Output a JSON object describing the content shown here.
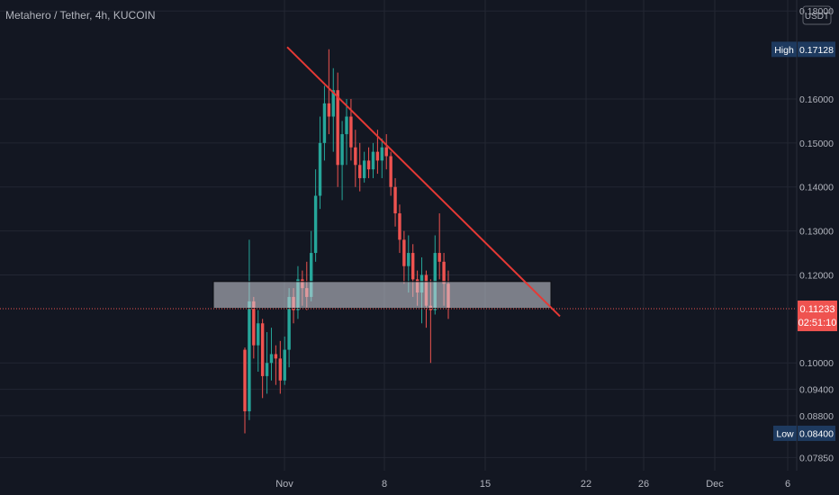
{
  "header": {
    "title": "Metahero / Tether, 4h, KUCOIN"
  },
  "currency_button": "USDT",
  "high_label": {
    "label": "High",
    "value": "0.17128"
  },
  "low_label": {
    "label": "Low",
    "value": "0.08400"
  },
  "price_label": {
    "value": "0.11233",
    "countdown": "02:51:10"
  },
  "colors": {
    "background": "#131722",
    "grid": "#232733",
    "text": "#b2b5be",
    "up": "#26a69a",
    "down": "#ef5350",
    "trendline": "#e53935",
    "zone_fill": "#d1d4dc",
    "label_bg": "#1e3a5f"
  },
  "chart_data": {
    "type": "candlestick",
    "title": "Metahero / Tether, 4h, KUCOIN",
    "ylim": [
      0.0755,
      0.1825
    ],
    "y_ticks": [
      "0.18000",
      "0.16000",
      "0.15000",
      "0.14000",
      "0.13000",
      "0.12000",
      "0.10000",
      "0.09400",
      "0.08800",
      "0.07850"
    ],
    "x_ticks": [
      "Nov",
      "8",
      "15",
      "22",
      "26",
      "Dec",
      "6"
    ],
    "last_price": 0.11233,
    "high": 0.17128,
    "low": 0.084,
    "candles": [
      [
        0.103,
        0.1035,
        0.084,
        0.089
      ],
      [
        0.089,
        0.128,
        0.087,
        0.114
      ],
      [
        0.114,
        0.115,
        0.101,
        0.104
      ],
      [
        0.104,
        0.112,
        0.098,
        0.109
      ],
      [
        0.109,
        0.11,
        0.092,
        0.097
      ],
      [
        0.097,
        0.107,
        0.093,
        0.1
      ],
      [
        0.1,
        0.108,
        0.096,
        0.102
      ],
      [
        0.102,
        0.104,
        0.095,
        0.101
      ],
      [
        0.101,
        0.105,
        0.093,
        0.096
      ],
      [
        0.096,
        0.106,
        0.095,
        0.103
      ],
      [
        0.103,
        0.117,
        0.099,
        0.115
      ],
      [
        0.115,
        0.117,
        0.109,
        0.112
      ],
      [
        0.112,
        0.122,
        0.11,
        0.119
      ],
      [
        0.119,
        0.121,
        0.113,
        0.117
      ],
      [
        0.117,
        0.123,
        0.112,
        0.115
      ],
      [
        0.115,
        0.13,
        0.114,
        0.125
      ],
      [
        0.125,
        0.144,
        0.123,
        0.138
      ],
      [
        0.138,
        0.156,
        0.135,
        0.15
      ],
      [
        0.15,
        0.163,
        0.146,
        0.159
      ],
      [
        0.159,
        0.1713,
        0.152,
        0.156
      ],
      [
        0.156,
        0.167,
        0.148,
        0.162
      ],
      [
        0.162,
        0.166,
        0.14,
        0.145
      ],
      [
        0.145,
        0.155,
        0.137,
        0.152
      ],
      [
        0.152,
        0.16,
        0.145,
        0.156
      ],
      [
        0.156,
        0.16,
        0.146,
        0.149
      ],
      [
        0.149,
        0.153,
        0.14,
        0.145
      ],
      [
        0.145,
        0.15,
        0.139,
        0.142
      ],
      [
        0.142,
        0.148,
        0.141,
        0.146
      ],
      [
        0.146,
        0.149,
        0.142,
        0.144
      ],
      [
        0.144,
        0.15,
        0.142,
        0.148
      ],
      [
        0.148,
        0.153,
        0.143,
        0.146
      ],
      [
        0.146,
        0.151,
        0.142,
        0.149
      ],
      [
        0.149,
        0.152,
        0.144,
        0.147
      ],
      [
        0.147,
        0.148,
        0.138,
        0.14
      ],
      [
        0.14,
        0.142,
        0.131,
        0.134
      ],
      [
        0.134,
        0.136,
        0.125,
        0.128
      ],
      [
        0.128,
        0.13,
        0.118,
        0.122
      ],
      [
        0.122,
        0.129,
        0.116,
        0.125
      ],
      [
        0.125,
        0.127,
        0.115,
        0.119
      ],
      [
        0.119,
        0.121,
        0.113,
        0.116
      ],
      [
        0.116,
        0.124,
        0.109,
        0.12
      ],
      [
        0.12,
        0.121,
        0.108,
        0.113
      ],
      [
        0.113,
        0.119,
        0.1,
        0.112
      ],
      [
        0.112,
        0.129,
        0.111,
        0.125
      ],
      [
        0.125,
        0.134,
        0.119,
        0.123
      ],
      [
        0.123,
        0.125,
        0.113,
        0.118
      ],
      [
        0.118,
        0.121,
        0.11,
        0.1123
      ]
    ],
    "trendline": [
      [
        0.1718
      ],
      [
        0.1106
      ]
    ],
    "zone": [
      0.1124,
      0.1185
    ]
  }
}
